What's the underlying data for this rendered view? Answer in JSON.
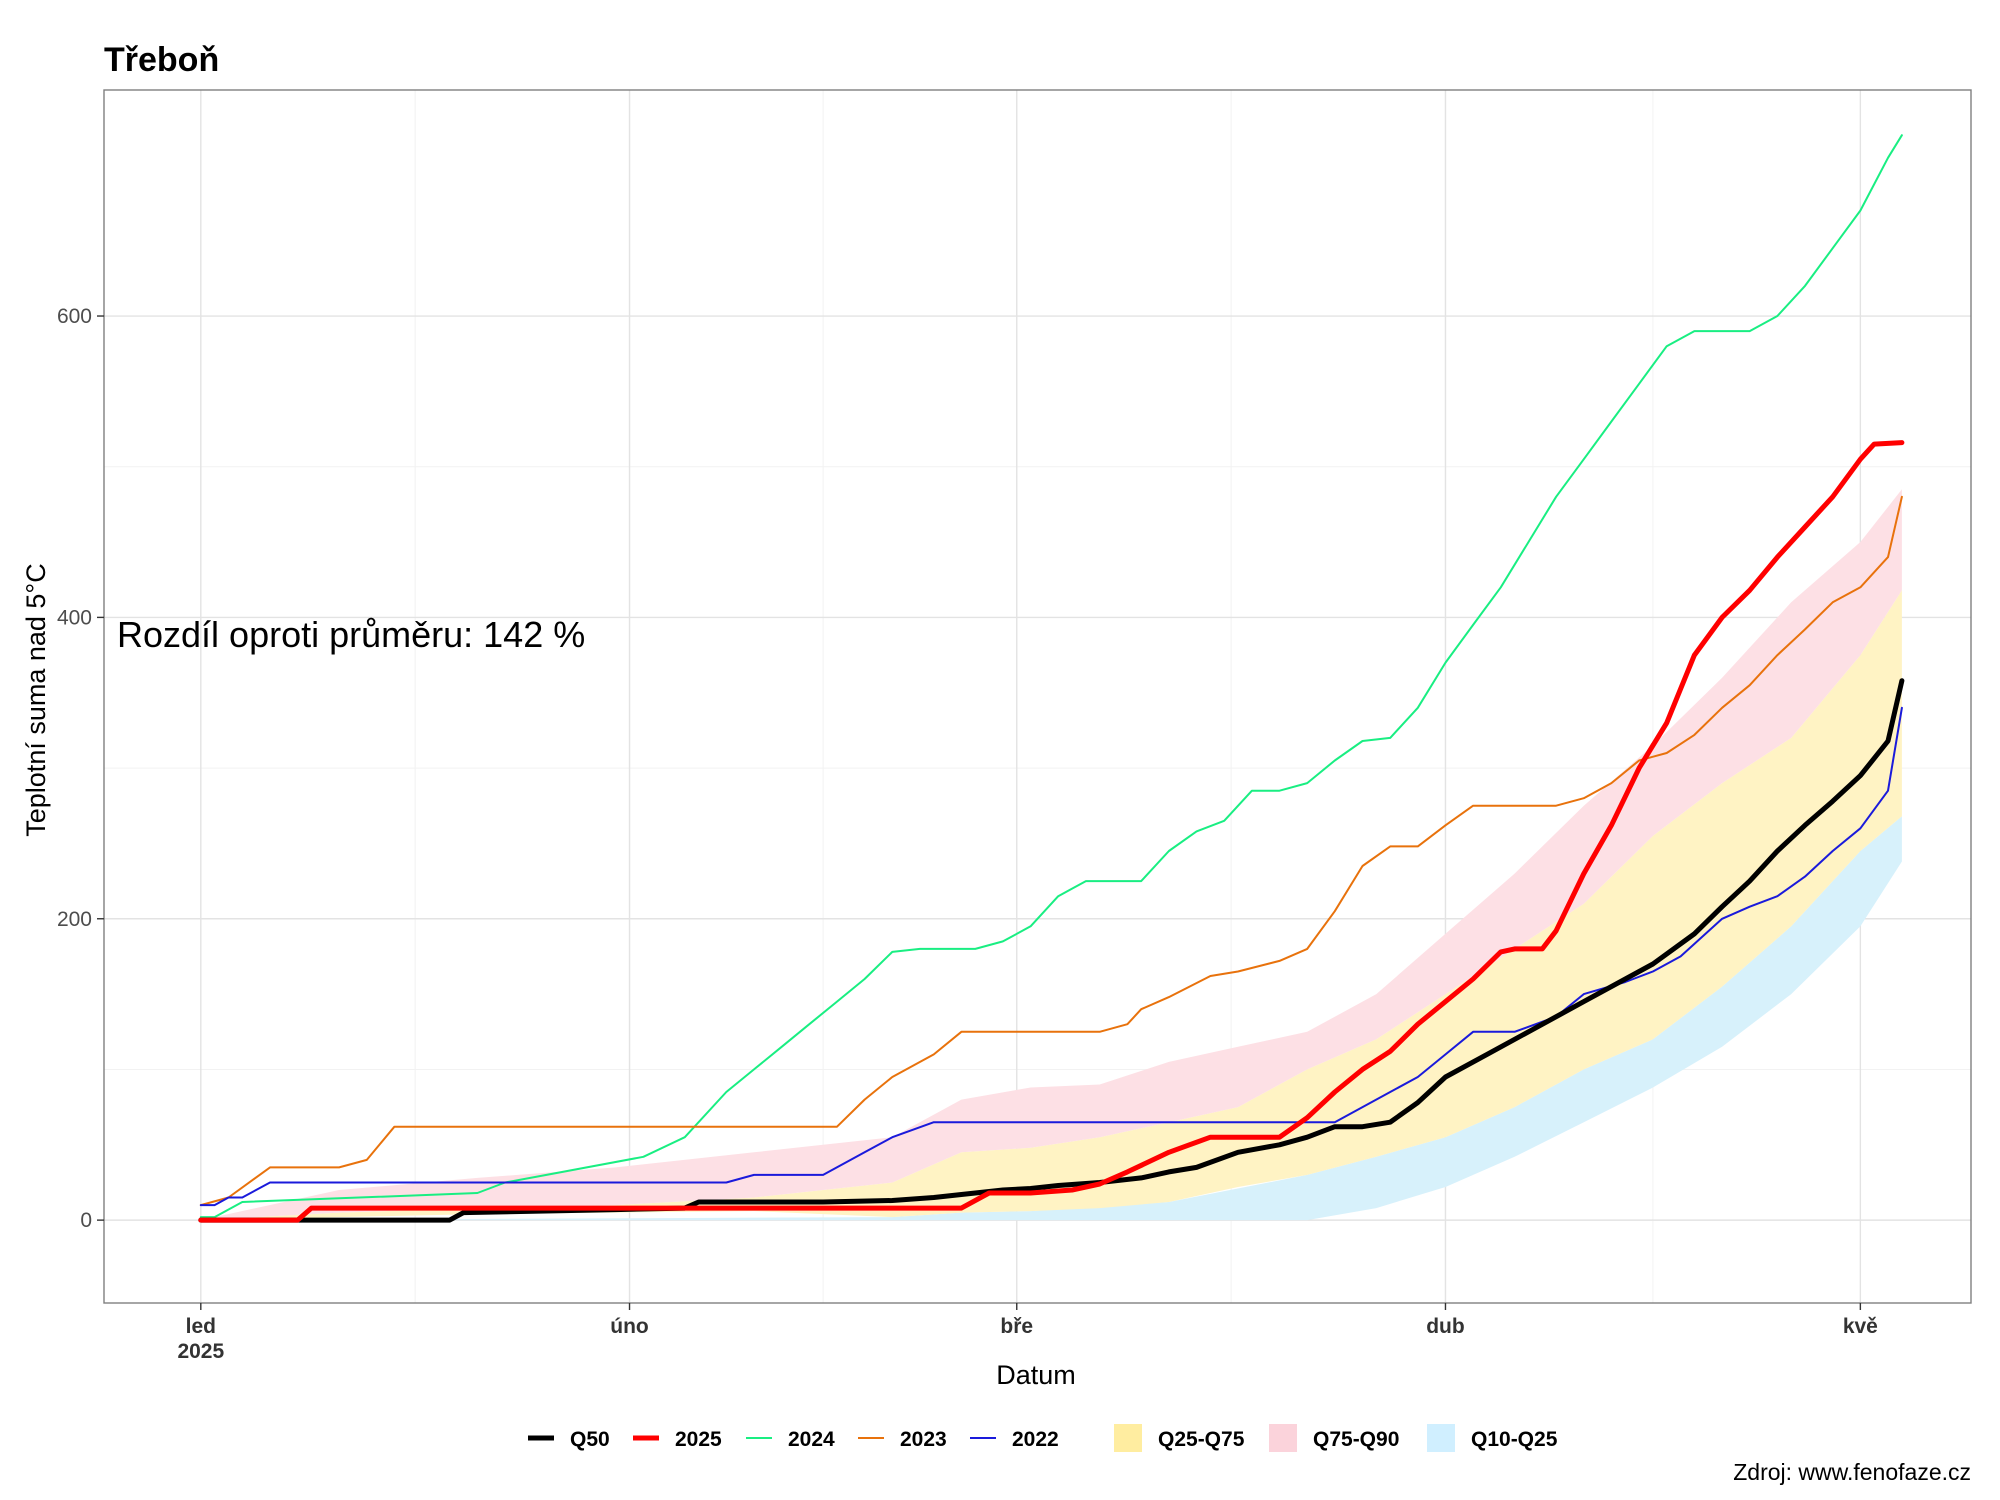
{
  "chart_data": {
    "type": "line",
    "title": "Třeboň",
    "xlabel": "Datum",
    "ylabel": "Teplotní suma nad 5°C",
    "ylim": [
      -55,
      750
    ],
    "yticks": [
      0,
      200,
      400,
      600
    ],
    "xlim": [
      -7,
      128
    ],
    "x_unit": "day of year 2025 (0 = 1 Jan)",
    "xticks": [
      {
        "x": 0,
        "label": "led",
        "label2": "2025"
      },
      {
        "x": 31,
        "label": "úno",
        "label2": ""
      },
      {
        "x": 59,
        "label": "bře",
        "label2": ""
      },
      {
        "x": 90,
        "label": "dub",
        "label2": ""
      },
      {
        "x": 120,
        "label": "kvě",
        "label2": ""
      }
    ],
    "grid": true,
    "legend_position": "bottom",
    "annotation": "Rozdíl oproti průměru: 142 %",
    "source": "Zdroj: www.fenofaze.cz",
    "bands": [
      {
        "name": "Q10-Q25",
        "color": "#d7f1fb",
        "x": [
          0,
          50,
          55,
          60,
          70,
          80,
          85,
          90,
          95,
          100,
          105,
          110,
          115,
          120,
          123
        ],
        "lower": [
          0,
          0,
          0,
          0,
          0,
          0,
          8,
          22,
          42,
          65,
          88,
          115,
          150,
          195,
          238
        ],
        "upper": [
          0,
          2,
          5,
          6,
          12,
          30,
          42,
          55,
          75,
          100,
          120,
          155,
          195,
          245,
          268
        ]
      },
      {
        "name": "Q25-Q75",
        "color": "#fff3c4",
        "x": [
          0,
          10,
          20,
          30,
          40,
          50,
          55,
          60,
          65,
          70,
          75,
          80,
          85,
          90,
          95,
          100,
          105,
          110,
          115,
          120,
          123
        ],
        "lower": [
          0,
          2,
          4,
          5,
          6,
          2,
          5,
          6,
          8,
          12,
          22,
          30,
          42,
          55,
          75,
          100,
          120,
          155,
          195,
          245,
          268
        ],
        "upper": [
          0,
          5,
          8,
          10,
          15,
          25,
          45,
          48,
          55,
          65,
          75,
          100,
          120,
          150,
          180,
          210,
          255,
          290,
          320,
          375,
          418
        ]
      },
      {
        "name": "Q75-Q90",
        "color": "#fde0e5",
        "x": [
          0,
          10,
          20,
          30,
          40,
          50,
          55,
          60,
          65,
          70,
          75,
          80,
          85,
          90,
          95,
          100,
          105,
          110,
          115,
          120,
          123
        ],
        "lower": [
          0,
          5,
          8,
          10,
          15,
          25,
          45,
          48,
          55,
          65,
          75,
          100,
          120,
          150,
          180,
          210,
          255,
          290,
          320,
          375,
          418
        ],
        "upper": [
          0,
          20,
          28,
          35,
          45,
          55,
          80,
          88,
          90,
          105,
          115,
          125,
          150,
          190,
          230,
          275,
          315,
          360,
          410,
          450,
          485
        ]
      }
    ],
    "series": [
      {
        "name": "Q50",
        "color": "#000000",
        "width": 5,
        "x": [
          0,
          18,
          19,
          30,
          35,
          36,
          45,
          50,
          53,
          55,
          56,
          58,
          60,
          62,
          65,
          68,
          70,
          72,
          75,
          78,
          80,
          82,
          84,
          86,
          88,
          90,
          93,
          96,
          100,
          105,
          108,
          110,
          112,
          114,
          116,
          118,
          120,
          122,
          123
        ],
        "y": [
          0,
          0,
          5,
          7,
          8,
          12,
          12,
          13,
          15,
          17,
          18,
          20,
          21,
          23,
          25,
          28,
          32,
          35,
          45,
          50,
          55,
          62,
          62,
          65,
          78,
          95,
          110,
          125,
          145,
          170,
          190,
          208,
          225,
          245,
          262,
          278,
          295,
          318,
          358
        ]
      },
      {
        "name": "2025",
        "color": "#ff0000",
        "width": 5,
        "x": [
          0,
          7,
          8,
          55,
          57,
          60,
          63,
          65,
          67,
          70,
          73,
          78,
          80,
          82,
          84,
          86,
          88,
          90,
          92,
          94,
          95,
          97,
          98,
          100,
          102,
          104,
          106,
          108,
          110,
          112,
          114,
          116,
          118,
          120,
          121,
          123
        ],
        "y": [
          0,
          0,
          8,
          8,
          18,
          18,
          20,
          24,
          32,
          45,
          55,
          55,
          68,
          85,
          100,
          112,
          130,
          145,
          160,
          178,
          180,
          180,
          192,
          230,
          262,
          300,
          330,
          375,
          400,
          418,
          440,
          460,
          480,
          505,
          515,
          516
        ]
      },
      {
        "name": "2024",
        "color": "#19ee82",
        "width": 2,
        "x": [
          0,
          1,
          3,
          20,
          22,
          25,
          32,
          35,
          38,
          40,
          42,
          44,
          46,
          48,
          50,
          52,
          54,
          56,
          58,
          60,
          62,
          64,
          66,
          68,
          70,
          72,
          74,
          76,
          78,
          80,
          82,
          84,
          86,
          88,
          90,
          92,
          94,
          96,
          98,
          100,
          102,
          104,
          106,
          108,
          110,
          112,
          114,
          116,
          118,
          120,
          122,
          123
        ],
        "y": [
          2,
          2,
          12,
          18,
          25,
          30,
          42,
          55,
          85,
          100,
          115,
          130,
          145,
          160,
          178,
          180,
          180,
          180,
          185,
          195,
          215,
          225,
          225,
          225,
          245,
          258,
          265,
          285,
          285,
          290,
          305,
          318,
          320,
          340,
          370,
          395,
          420,
          450,
          480,
          505,
          530,
          555,
          580,
          590,
          590,
          590,
          600,
          620,
          645,
          670,
          705,
          720
        ]
      },
      {
        "name": "2023",
        "color": "#e8720c",
        "width": 2,
        "x": [
          0,
          2,
          5,
          8,
          10,
          12,
          14,
          46,
          48,
          50,
          53,
          55,
          58,
          60,
          62,
          65,
          67,
          68,
          70,
          73,
          75,
          78,
          80,
          82,
          84,
          86,
          88,
          90,
          92,
          94,
          96,
          98,
          100,
          102,
          104,
          106,
          108,
          110,
          112,
          114,
          116,
          118,
          120,
          122,
          123
        ],
        "y": [
          10,
          15,
          35,
          35,
          35,
          40,
          62,
          62,
          80,
          95,
          110,
          125,
          125,
          125,
          125,
          125,
          130,
          140,
          148,
          162,
          165,
          172,
          180,
          205,
          235,
          248,
          248,
          262,
          275,
          275,
          275,
          275,
          280,
          290,
          305,
          310,
          322,
          340,
          355,
          375,
          392,
          410,
          420,
          440,
          480
        ]
      },
      {
        "name": "2022",
        "color": "#1a1adb",
        "width": 2,
        "x": [
          0,
          1,
          2,
          3,
          5,
          10,
          15,
          20,
          25,
          30,
          35,
          38,
          40,
          45,
          48,
          50,
          53,
          55,
          60,
          65,
          70,
          75,
          80,
          82,
          84,
          86,
          88,
          90,
          92,
          95,
          98,
          100,
          103,
          105,
          107,
          110,
          112,
          114,
          116,
          118,
          120,
          122,
          123
        ],
        "y": [
          10,
          10,
          15,
          15,
          25,
          25,
          25,
          25,
          25,
          25,
          25,
          25,
          30,
          30,
          45,
          55,
          65,
          65,
          65,
          65,
          65,
          65,
          65,
          65,
          75,
          85,
          95,
          110,
          125,
          125,
          135,
          150,
          158,
          165,
          175,
          200,
          208,
          215,
          228,
          245,
          260,
          285,
          340
        ]
      }
    ]
  },
  "legend": {
    "lines": [
      {
        "label": "Q50",
        "color": "#000000",
        "width": 5
      },
      {
        "label": "2025",
        "color": "#ff0000",
        "width": 5
      },
      {
        "label": "2024",
        "color": "#19ee82",
        "width": 2
      },
      {
        "label": "2023",
        "color": "#e8720c",
        "width": 2
      },
      {
        "label": "2022",
        "color": "#1a1adb",
        "width": 2
      }
    ],
    "fills": [
      {
        "label": "Q25-Q75",
        "color": "#ffeda0"
      },
      {
        "label": "Q75-Q90",
        "color": "#fbd3db"
      },
      {
        "label": "Q10-Q25",
        "color": "#d0efff"
      }
    ]
  }
}
